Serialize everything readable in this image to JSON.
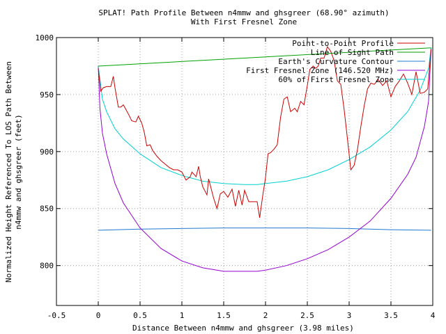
{
  "chart_data": {
    "type": "line",
    "title": "SPLAT! Path Profile Between n4mmw and ghsgreer (68.90° azimuth)",
    "subtitle": "With First Fresnel Zone",
    "xlabel": "Distance Between n4mmw and ghsgreer (3.98 miles)",
    "ylabel_line1": "Normalized Height Referenced To LOS Path Between",
    "ylabel_line2": "n4mmw and ghsgreer (feet)",
    "xlim": [
      -0.5,
      4
    ],
    "ylim": [
      765,
      1000
    ],
    "xticks": [
      -0.5,
      0,
      0.5,
      1,
      1.5,
      2,
      2.5,
      3,
      3.5,
      4
    ],
    "xtick_labels": [
      "-0.5",
      "0",
      "0.5",
      "1",
      "1.5",
      "2",
      "2.5",
      "3",
      "3.5",
      "4"
    ],
    "yticks": [
      800,
      850,
      900,
      950,
      1000
    ],
    "ytick_labels": [
      "800",
      "850",
      "900",
      "950",
      "1000"
    ],
    "grid": true,
    "legend_position": "top-right",
    "series": [
      {
        "name": "Point-to-Point Profile",
        "color": "#cc0000",
        "x": [
          0,
          0.03,
          0.06,
          0.1,
          0.15,
          0.18,
          0.2,
          0.24,
          0.27,
          0.3,
          0.33,
          0.36,
          0.4,
          0.45,
          0.48,
          0.5,
          0.52,
          0.55,
          0.58,
          0.62,
          0.65,
          0.7,
          0.75,
          0.8,
          0.85,
          0.9,
          0.95,
          1.0,
          1.05,
          1.1,
          1.12,
          1.17,
          1.2,
          1.22,
          1.25,
          1.3,
          1.32,
          1.38,
          1.42,
          1.46,
          1.5,
          1.55,
          1.6,
          1.64,
          1.68,
          1.72,
          1.75,
          1.8,
          1.85,
          1.9,
          1.93,
          1.97,
          2.0,
          2.03,
          2.06,
          2.1,
          2.14,
          2.18,
          2.22,
          2.26,
          2.3,
          2.35,
          2.38,
          2.42,
          2.46,
          2.5,
          2.53,
          2.57,
          2.6,
          2.63,
          2.66,
          2.7,
          2.74,
          2.78,
          2.82,
          2.86,
          2.9,
          2.94,
          2.98,
          3.02,
          3.06,
          3.1,
          3.14,
          3.18,
          3.22,
          3.26,
          3.3,
          3.35,
          3.4,
          3.45,
          3.5,
          3.55,
          3.6,
          3.65,
          3.7,
          3.75,
          3.8,
          3.85,
          3.9,
          3.94,
          3.98
        ],
        "y": [
          973,
          953,
          956,
          957,
          957,
          966,
          956,
          939,
          939,
          941,
          937,
          933,
          927,
          926,
          931,
          928,
          925,
          917,
          905,
          906,
          901,
          896,
          892,
          889,
          886,
          884,
          884,
          882,
          875,
          878,
          882,
          878,
          887,
          878,
          869,
          862,
          876,
          859,
          850,
          863,
          865,
          860,
          867,
          852,
          866,
          853,
          866,
          856,
          856,
          856,
          842,
          863,
          877,
          898,
          899,
          902,
          906,
          930,
          946,
          948,
          935,
          938,
          935,
          944,
          941,
          958,
          972,
          975,
          973,
          975,
          982,
          982,
          992,
          988,
          980,
          962,
          959,
          937,
          911,
          884,
          888,
          902,
          922,
          940,
          955,
          960,
          959,
          963,
          958,
          962,
          948,
          957,
          962,
          968,
          960,
          950,
          970,
          951,
          952,
          955,
          990
        ]
      },
      {
        "name": "Line of Sight Path",
        "color": "#00a000",
        "x": [
          0,
          3.98
        ],
        "y": [
          975,
          991
        ]
      },
      {
        "name": "Earth's Curvature Contour",
        "color": "#1f78d0",
        "x": [
          0,
          0.5,
          1,
          1.5,
          2,
          2.5,
          3,
          3.5,
          3.98
        ],
        "y": [
          831,
          832,
          832.5,
          833,
          833,
          833,
          832.5,
          831.5,
          831
        ]
      },
      {
        "name": "First Fresnel Zone (146.520 MHz)",
        "color": "#9400d3",
        "x": [
          0,
          0.02,
          0.05,
          0.1,
          0.2,
          0.3,
          0.5,
          0.75,
          1,
          1.25,
          1.5,
          1.75,
          1.9,
          2.0,
          2.25,
          2.5,
          2.75,
          3,
          3.25,
          3.5,
          3.7,
          3.8,
          3.9,
          3.95,
          3.98
        ],
        "y": [
          975,
          938,
          916,
          898,
          872,
          855,
          833,
          815,
          804,
          798,
          795,
          795,
          795,
          796,
          800,
          806,
          814,
          825,
          839,
          859,
          880,
          895,
          922,
          944,
          991
        ]
      },
      {
        "name": "60% of First Fresnel Zone",
        "color": "#00d0d0",
        "x": [
          0,
          0.05,
          0.1,
          0.2,
          0.3,
          0.5,
          0.75,
          1,
          1.25,
          1.5,
          1.75,
          1.9,
          2.0,
          2.25,
          2.5,
          2.75,
          3,
          3.25,
          3.5,
          3.7,
          3.85,
          3.95,
          3.98
        ],
        "y": [
          975,
          946,
          935,
          920,
          911,
          898,
          886,
          879,
          874,
          872,
          871,
          871,
          872,
          874,
          878,
          884,
          893,
          904,
          919,
          935,
          954,
          973,
          991
        ]
      }
    ]
  }
}
